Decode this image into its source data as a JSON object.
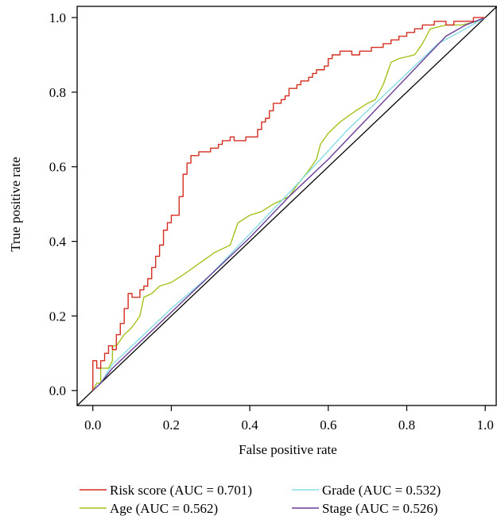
{
  "chart_data": {
    "type": "line",
    "title": "",
    "xlabel": "False positive rate",
    "ylabel": "True positive rate",
    "xlim": [
      -0.04,
      1.03
    ],
    "ylim": [
      -0.04,
      1.03
    ],
    "xticks": [
      "0.0",
      "0.2",
      "0.4",
      "0.6",
      "0.8",
      "1.0"
    ],
    "yticks": [
      "0.0",
      "0.2",
      "0.4",
      "0.6",
      "0.8",
      "1.0"
    ],
    "grid": false,
    "legend_position": "bottom",
    "diagonal": {
      "color": "#000000"
    },
    "series": [
      {
        "name": "Risk score (AUC = 0.701)",
        "color": "#d62d20",
        "points": [
          [
            0,
            0
          ],
          [
            0,
            0.08
          ],
          [
            0.01,
            0.08
          ],
          [
            0.01,
            0.06
          ],
          [
            0.02,
            0.06
          ],
          [
            0.02,
            0.08
          ],
          [
            0.03,
            0.08
          ],
          [
            0.03,
            0.1
          ],
          [
            0.04,
            0.1
          ],
          [
            0.04,
            0.12
          ],
          [
            0.05,
            0.12
          ],
          [
            0.05,
            0.11
          ],
          [
            0.06,
            0.11
          ],
          [
            0.06,
            0.15
          ],
          [
            0.07,
            0.15
          ],
          [
            0.07,
            0.18
          ],
          [
            0.08,
            0.18
          ],
          [
            0.08,
            0.22
          ],
          [
            0.09,
            0.22
          ],
          [
            0.09,
            0.26
          ],
          [
            0.1,
            0.26
          ],
          [
            0.1,
            0.25
          ],
          [
            0.12,
            0.25
          ],
          [
            0.12,
            0.27
          ],
          [
            0.13,
            0.27
          ],
          [
            0.13,
            0.28
          ],
          [
            0.14,
            0.28
          ],
          [
            0.14,
            0.3
          ],
          [
            0.15,
            0.3
          ],
          [
            0.15,
            0.33
          ],
          [
            0.16,
            0.33
          ],
          [
            0.16,
            0.36
          ],
          [
            0.17,
            0.36
          ],
          [
            0.17,
            0.39
          ],
          [
            0.18,
            0.39
          ],
          [
            0.18,
            0.43
          ],
          [
            0.19,
            0.43
          ],
          [
            0.19,
            0.45
          ],
          [
            0.2,
            0.45
          ],
          [
            0.2,
            0.47
          ],
          [
            0.21,
            0.47
          ],
          [
            0.22,
            0.47
          ],
          [
            0.22,
            0.52
          ],
          [
            0.23,
            0.52
          ],
          [
            0.23,
            0.58
          ],
          [
            0.24,
            0.58
          ],
          [
            0.24,
            0.61
          ],
          [
            0.25,
            0.61
          ],
          [
            0.25,
            0.63
          ],
          [
            0.27,
            0.63
          ],
          [
            0.27,
            0.64
          ],
          [
            0.3,
            0.64
          ],
          [
            0.3,
            0.65
          ],
          [
            0.32,
            0.65
          ],
          [
            0.32,
            0.66
          ],
          [
            0.33,
            0.66
          ],
          [
            0.33,
            0.67
          ],
          [
            0.35,
            0.67
          ],
          [
            0.35,
            0.68
          ],
          [
            0.36,
            0.68
          ],
          [
            0.36,
            0.67
          ],
          [
            0.39,
            0.67
          ],
          [
            0.39,
            0.68
          ],
          [
            0.42,
            0.68
          ],
          [
            0.42,
            0.7
          ],
          [
            0.43,
            0.7
          ],
          [
            0.43,
            0.72
          ],
          [
            0.44,
            0.72
          ],
          [
            0.44,
            0.73
          ],
          [
            0.45,
            0.73
          ],
          [
            0.45,
            0.75
          ],
          [
            0.46,
            0.75
          ],
          [
            0.46,
            0.77
          ],
          [
            0.48,
            0.77
          ],
          [
            0.48,
            0.78
          ],
          [
            0.49,
            0.78
          ],
          [
            0.49,
            0.79
          ],
          [
            0.5,
            0.79
          ],
          [
            0.5,
            0.81
          ],
          [
            0.52,
            0.81
          ],
          [
            0.52,
            0.82
          ],
          [
            0.53,
            0.82
          ],
          [
            0.53,
            0.83
          ],
          [
            0.55,
            0.83
          ],
          [
            0.55,
            0.84
          ],
          [
            0.56,
            0.84
          ],
          [
            0.56,
            0.85
          ],
          [
            0.57,
            0.85
          ],
          [
            0.57,
            0.86
          ],
          [
            0.59,
            0.86
          ],
          [
            0.59,
            0.87
          ],
          [
            0.6,
            0.87
          ],
          [
            0.6,
            0.89
          ],
          [
            0.61,
            0.89
          ],
          [
            0.61,
            0.9
          ],
          [
            0.63,
            0.9
          ],
          [
            0.63,
            0.91
          ],
          [
            0.66,
            0.91
          ],
          [
            0.66,
            0.9
          ],
          [
            0.68,
            0.9
          ],
          [
            0.68,
            0.91
          ],
          [
            0.71,
            0.91
          ],
          [
            0.71,
            0.92
          ],
          [
            0.74,
            0.92
          ],
          [
            0.74,
            0.93
          ],
          [
            0.76,
            0.93
          ],
          [
            0.76,
            0.94
          ],
          [
            0.78,
            0.94
          ],
          [
            0.78,
            0.95
          ],
          [
            0.8,
            0.95
          ],
          [
            0.8,
            0.96
          ],
          [
            0.82,
            0.96
          ],
          [
            0.82,
            0.97
          ],
          [
            0.84,
            0.97
          ],
          [
            0.84,
            0.98
          ],
          [
            0.87,
            0.98
          ],
          [
            0.87,
            0.99
          ],
          [
            0.9,
            0.99
          ],
          [
            0.9,
            0.98
          ],
          [
            0.92,
            0.98
          ],
          [
            0.92,
            0.99
          ],
          [
            0.97,
            0.99
          ],
          [
            0.97,
            1
          ],
          [
            1,
            1
          ]
        ]
      },
      {
        "name": "Age (AUC = 0.562)",
        "color": "#a3c21d",
        "points": [
          [
            0,
            0
          ],
          [
            0.01,
            0.02
          ],
          [
            0.02,
            0.02
          ],
          [
            0.02,
            0.06
          ],
          [
            0.04,
            0.06
          ],
          [
            0.05,
            0.08
          ],
          [
            0.05,
            0.12
          ],
          [
            0.06,
            0.12
          ],
          [
            0.08,
            0.15
          ],
          [
            0.1,
            0.17
          ],
          [
            0.12,
            0.2
          ],
          [
            0.13,
            0.25
          ],
          [
            0.15,
            0.26
          ],
          [
            0.17,
            0.28
          ],
          [
            0.2,
            0.29
          ],
          [
            0.23,
            0.31
          ],
          [
            0.27,
            0.34
          ],
          [
            0.31,
            0.37
          ],
          [
            0.33,
            0.38
          ],
          [
            0.35,
            0.39
          ],
          [
            0.37,
            0.45
          ],
          [
            0.4,
            0.47
          ],
          [
            0.43,
            0.48
          ],
          [
            0.46,
            0.5
          ],
          [
            0.5,
            0.52
          ],
          [
            0.52,
            0.55
          ],
          [
            0.55,
            0.59
          ],
          [
            0.57,
            0.62
          ],
          [
            0.58,
            0.66
          ],
          [
            0.6,
            0.69
          ],
          [
            0.63,
            0.72
          ],
          [
            0.67,
            0.75
          ],
          [
            0.7,
            0.77
          ],
          [
            0.72,
            0.78
          ],
          [
            0.74,
            0.82
          ],
          [
            0.76,
            0.88
          ],
          [
            0.78,
            0.89
          ],
          [
            0.82,
            0.9
          ],
          [
            0.84,
            0.93
          ],
          [
            0.86,
            0.97
          ],
          [
            0.9,
            0.98
          ],
          [
            0.94,
            0.98
          ],
          [
            0.98,
            0.99
          ],
          [
            1,
            1
          ]
        ]
      },
      {
        "name": "Grade (AUC = 0.532)",
        "color": "#86dde4",
        "points": [
          [
            0,
            0
          ],
          [
            0.02,
            0.02
          ],
          [
            0.05,
            0.07
          ],
          [
            0.1,
            0.12
          ],
          [
            0.2,
            0.22
          ],
          [
            0.3,
            0.31
          ],
          [
            0.4,
            0.42
          ],
          [
            0.5,
            0.53
          ],
          [
            0.58,
            0.62
          ],
          [
            0.65,
            0.7
          ],
          [
            0.72,
            0.77
          ],
          [
            0.8,
            0.85
          ],
          [
            0.88,
            0.93
          ],
          [
            0.95,
            0.97
          ],
          [
            1,
            1
          ]
        ]
      },
      {
        "name": "Stage (AUC = 0.526)",
        "color": "#6a3d9a",
        "points": [
          [
            0,
            0
          ],
          [
            0.02,
            0.02
          ],
          [
            0.05,
            0.06
          ],
          [
            0.1,
            0.11
          ],
          [
            0.2,
            0.21
          ],
          [
            0.3,
            0.31
          ],
          [
            0.4,
            0.41
          ],
          [
            0.5,
            0.52
          ],
          [
            0.6,
            0.62
          ],
          [
            0.7,
            0.73
          ],
          [
            0.8,
            0.84
          ],
          [
            0.9,
            0.95
          ],
          [
            0.95,
            0.98
          ],
          [
            1,
            1
          ]
        ]
      }
    ]
  }
}
